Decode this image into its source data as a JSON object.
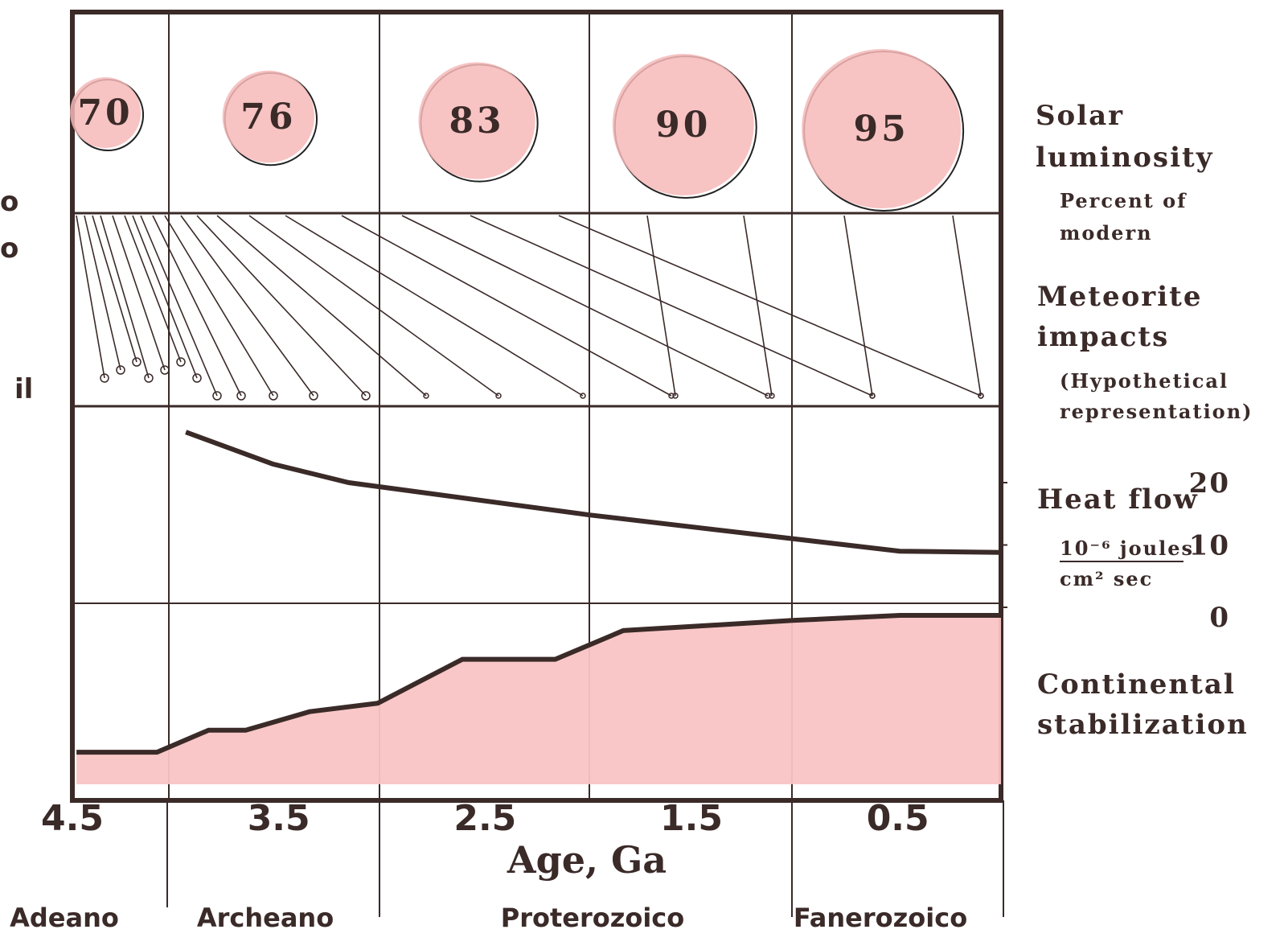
{
  "chart_data": [
    {
      "type": "bubble",
      "title_lines": [
        "Solar",
        "luminosity"
      ],
      "subtitle_lines": [
        "Percent of",
        "modern"
      ],
      "x": [
        4.34,
        3.55,
        2.54,
        1.54,
        0.58
      ],
      "values": [
        70,
        76,
        83,
        90,
        95
      ],
      "color": "#f6b8b8"
    },
    {
      "type": "impacts",
      "title_lines": [
        "Meteorite",
        "impacts"
      ],
      "subtitle_lines": [
        "(Hypothetical",
        "representation)"
      ]
    },
    {
      "type": "line",
      "title": "Heat flow",
      "unit": [
        "10⁻⁶ joules",
        "cm² sec"
      ],
      "x": [
        3.95,
        3.53,
        3.16,
        1.99,
        0.49,
        0
      ],
      "values": [
        28.1,
        23.0,
        20.0,
        14.8,
        9.0,
        8.8
      ],
      "ylim": [
        0,
        32
      ],
      "yticks": [
        0,
        10,
        20
      ],
      "color": "#3a2a28"
    },
    {
      "type": "area",
      "title_lines": [
        "Continental",
        "stabilization"
      ],
      "x": [
        4.48,
        4.09,
        3.84,
        3.66,
        3.35,
        3.02,
        2.61,
        2.16,
        1.83,
        1.01,
        0.49,
        0
      ],
      "values": [
        19,
        19,
        32,
        32,
        43,
        48,
        74,
        74,
        91,
        97,
        100,
        100
      ],
      "ylim": [
        0,
        100
      ],
      "color": "#f9c4c4",
      "edge_color": "#3a2a28"
    },
    {
      "type": "axis",
      "xlabel": "Age, Ga",
      "xlim": [
        4.5,
        0
      ],
      "xticks": [
        4.5,
        3.5,
        2.5,
        1.5,
        0.5
      ],
      "periods": [
        "Adeano",
        "Archeano",
        "Proterozoico",
        "Fanerozoico"
      ],
      "margin_text": [
        "o",
        "o",
        "il"
      ]
    }
  ]
}
